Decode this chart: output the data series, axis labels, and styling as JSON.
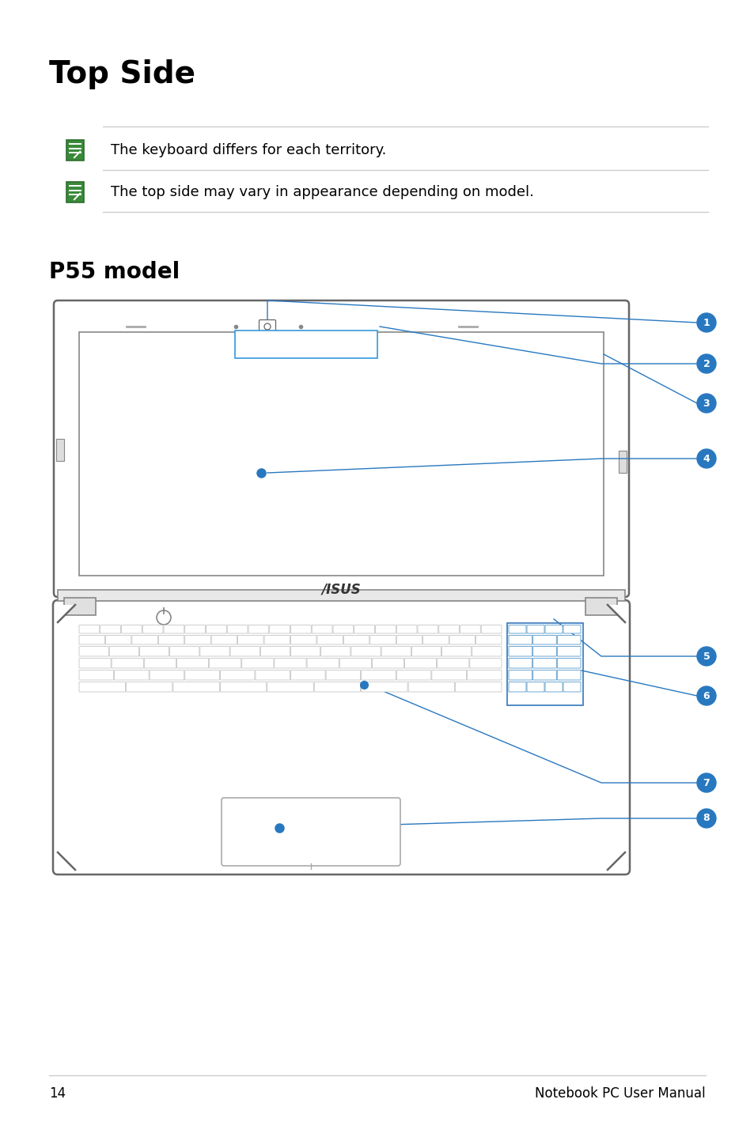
{
  "title": "Top Side",
  "subtitle": "P55 model",
  "note1": "The keyboard differs for each territory.",
  "note2": "The top side may vary in appearance depending on model.",
  "page_number": "14",
  "page_title": "Notebook PC User Manual",
  "bg_color": "#ffffff",
  "text_color": "#000000",
  "line_color": "#c8c8c8",
  "arrow_color": "#2878c0",
  "label_bg": "#2878c0",
  "label_fg": "#ffffff",
  "icon_green": "#3a8a3a",
  "icon_edge": "#2d6e2d",
  "key_face": "#ffffff",
  "key_edge": "#bbbbbb",
  "laptop_edge": "#666666",
  "hinge_face": "#dddddd",
  "screen_bg": "#ffffff",
  "asus_color": "#333333"
}
